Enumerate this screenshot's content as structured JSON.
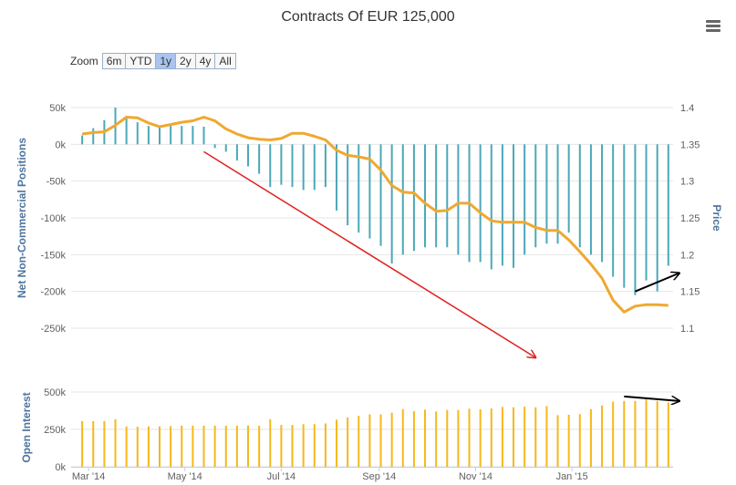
{
  "header": {
    "title": "Contracts Of EUR 125,000",
    "menu_icon": "hamburger-menu-icon"
  },
  "zoom": {
    "label": "Zoom",
    "buttons": [
      "6m",
      "YTD",
      "1y",
      "2y",
      "4y",
      "All"
    ],
    "active": "1y"
  },
  "colors": {
    "positions": "#4ba8b8",
    "price": "#f0a830",
    "open_interest": "#f6b81a",
    "red_arrow": "#e02020",
    "black_arrow": "#000000"
  },
  "chart_data": [
    {
      "type": "bar",
      "name": "positions-price",
      "ylabel": "Net Non-Commercial Positions",
      "ylabel_right": "Price",
      "ylim": [
        -250,
        50
      ],
      "ylim_right": [
        1.1,
        1.4
      ],
      "yticks": [
        "50k",
        "0k",
        "-50k",
        "-100k",
        "-150k",
        "-200k",
        "-250k"
      ],
      "yticks_right": [
        "1.4",
        "1.35",
        "1.3",
        "1.25",
        "1.2",
        "1.15",
        "1.1"
      ],
      "series": [
        {
          "type": "bar",
          "x": [
            "2014-02-25",
            "2014-03-04",
            "2014-03-11",
            "2014-03-18",
            "2014-03-25",
            "2014-04-01",
            "2014-04-08",
            "2014-04-15",
            "2014-04-22",
            "2014-04-29",
            "2014-05-06",
            "2014-05-13",
            "2014-05-20",
            "2014-05-27",
            "2014-06-03",
            "2014-06-10",
            "2014-06-17",
            "2014-06-24",
            "2014-07-01",
            "2014-07-08",
            "2014-07-15",
            "2014-07-22",
            "2014-07-29",
            "2014-08-05",
            "2014-08-12",
            "2014-08-19",
            "2014-08-26",
            "2014-09-02",
            "2014-09-09",
            "2014-09-16",
            "2014-09-23",
            "2014-09-30",
            "2014-10-07",
            "2014-10-14",
            "2014-10-21",
            "2014-10-28",
            "2014-11-04",
            "2014-11-11",
            "2014-11-18",
            "2014-11-25",
            "2014-12-02",
            "2014-12-09",
            "2014-12-16",
            "2014-12-23",
            "2014-12-30",
            "2015-01-06",
            "2015-01-13",
            "2015-01-20",
            "2015-01-27",
            "2015-02-03",
            "2015-02-10",
            "2015-02-17",
            "2015-02-24",
            "2015-03-03"
          ],
          "values": [
            12,
            22,
            33,
            50,
            38,
            30,
            25,
            24,
            25,
            25,
            25,
            24,
            -5,
            -10,
            -22,
            -30,
            -40,
            -58,
            -55,
            -58,
            -62,
            -62,
            -58,
            -90,
            -110,
            -120,
            -128,
            -138,
            -162,
            -150,
            -145,
            -140,
            -140,
            -140,
            -150,
            -160,
            -160,
            -170,
            -165,
            -168,
            -150,
            -140,
            -135,
            -135,
            -120,
            -140,
            -150,
            -160,
            -180,
            -195,
            -205,
            -185,
            -200,
            -165
          ]
        },
        {
          "type": "line",
          "x": [
            "2014-02-25",
            "2014-03-04",
            "2014-03-11",
            "2014-03-18",
            "2014-03-25",
            "2014-04-01",
            "2014-04-08",
            "2014-04-15",
            "2014-04-22",
            "2014-04-29",
            "2014-05-06",
            "2014-05-13",
            "2014-05-20",
            "2014-05-27",
            "2014-06-03",
            "2014-06-10",
            "2014-06-17",
            "2014-06-24",
            "2014-07-01",
            "2014-07-08",
            "2014-07-15",
            "2014-07-22",
            "2014-07-29",
            "2014-08-05",
            "2014-08-12",
            "2014-08-19",
            "2014-08-26",
            "2014-09-02",
            "2014-09-09",
            "2014-09-16",
            "2014-09-23",
            "2014-09-30",
            "2014-10-07",
            "2014-10-14",
            "2014-10-21",
            "2014-10-28",
            "2014-11-04",
            "2014-11-11",
            "2014-11-18",
            "2014-11-25",
            "2014-12-02",
            "2014-12-09",
            "2014-12-16",
            "2014-12-23",
            "2014-12-30",
            "2015-01-06",
            "2015-01-13",
            "2015-01-20",
            "2015-01-27",
            "2015-02-03",
            "2015-02-10",
            "2015-02-17",
            "2015-02-24",
            "2015-03-03"
          ],
          "values": [
            1.364,
            1.366,
            1.367,
            1.376,
            1.387,
            1.386,
            1.379,
            1.374,
            1.377,
            1.38,
            1.382,
            1.387,
            1.382,
            1.371,
            1.364,
            1.359,
            1.357,
            1.356,
            1.358,
            1.365,
            1.365,
            1.361,
            1.356,
            1.342,
            1.335,
            1.333,
            1.33,
            1.315,
            1.294,
            1.285,
            1.284,
            1.27,
            1.259,
            1.26,
            1.27,
            1.27,
            1.257,
            1.246,
            1.244,
            1.244,
            1.244,
            1.237,
            1.233,
            1.233,
            1.22,
            1.204,
            1.187,
            1.168,
            1.138,
            1.122,
            1.13,
            1.132,
            1.132,
            1.131
          ]
        }
      ]
    },
    {
      "type": "bar",
      "name": "open-interest",
      "ylabel": "Open Interest",
      "ylim": [
        0,
        500
      ],
      "yticks": [
        "500k",
        "250k",
        "0k"
      ],
      "x_ticks": [
        "Mar '14",
        "May '14",
        "Jul '14",
        "Sep '14",
        "Nov '14",
        "Jan '15"
      ],
      "x_tick_dates": [
        "2014-03-01",
        "2014-05-01",
        "2014-07-01",
        "2014-09-01",
        "2014-11-01",
        "2015-01-01"
      ],
      "values": [
        305,
        305,
        305,
        318,
        270,
        268,
        270,
        270,
        272,
        275,
        275,
        275,
        275,
        275,
        275,
        275,
        275,
        318,
        280,
        280,
        285,
        285,
        290,
        315,
        330,
        340,
        350,
        350,
        362,
        386,
        372,
        382,
        370,
        380,
        380,
        388,
        385,
        390,
        400,
        398,
        402,
        398,
        406,
        345,
        348,
        352,
        385,
        410,
        436,
        440,
        440,
        450,
        440,
        430
      ]
    }
  ],
  "annotations": {
    "red_arrow": {
      "from": [
        "2014-05-13",
        -10
      ],
      "to": [
        "2014-12-09",
        -290
      ]
    },
    "black_arrow_top": {
      "from": [
        "2015-02-10",
        -200
      ],
      "to": [
        "2015-03-10",
        -175
      ]
    },
    "black_arrow_bottom": {
      "from": [
        "2015-02-03",
        470
      ],
      "to": [
        "2015-03-10",
        440
      ]
    }
  }
}
